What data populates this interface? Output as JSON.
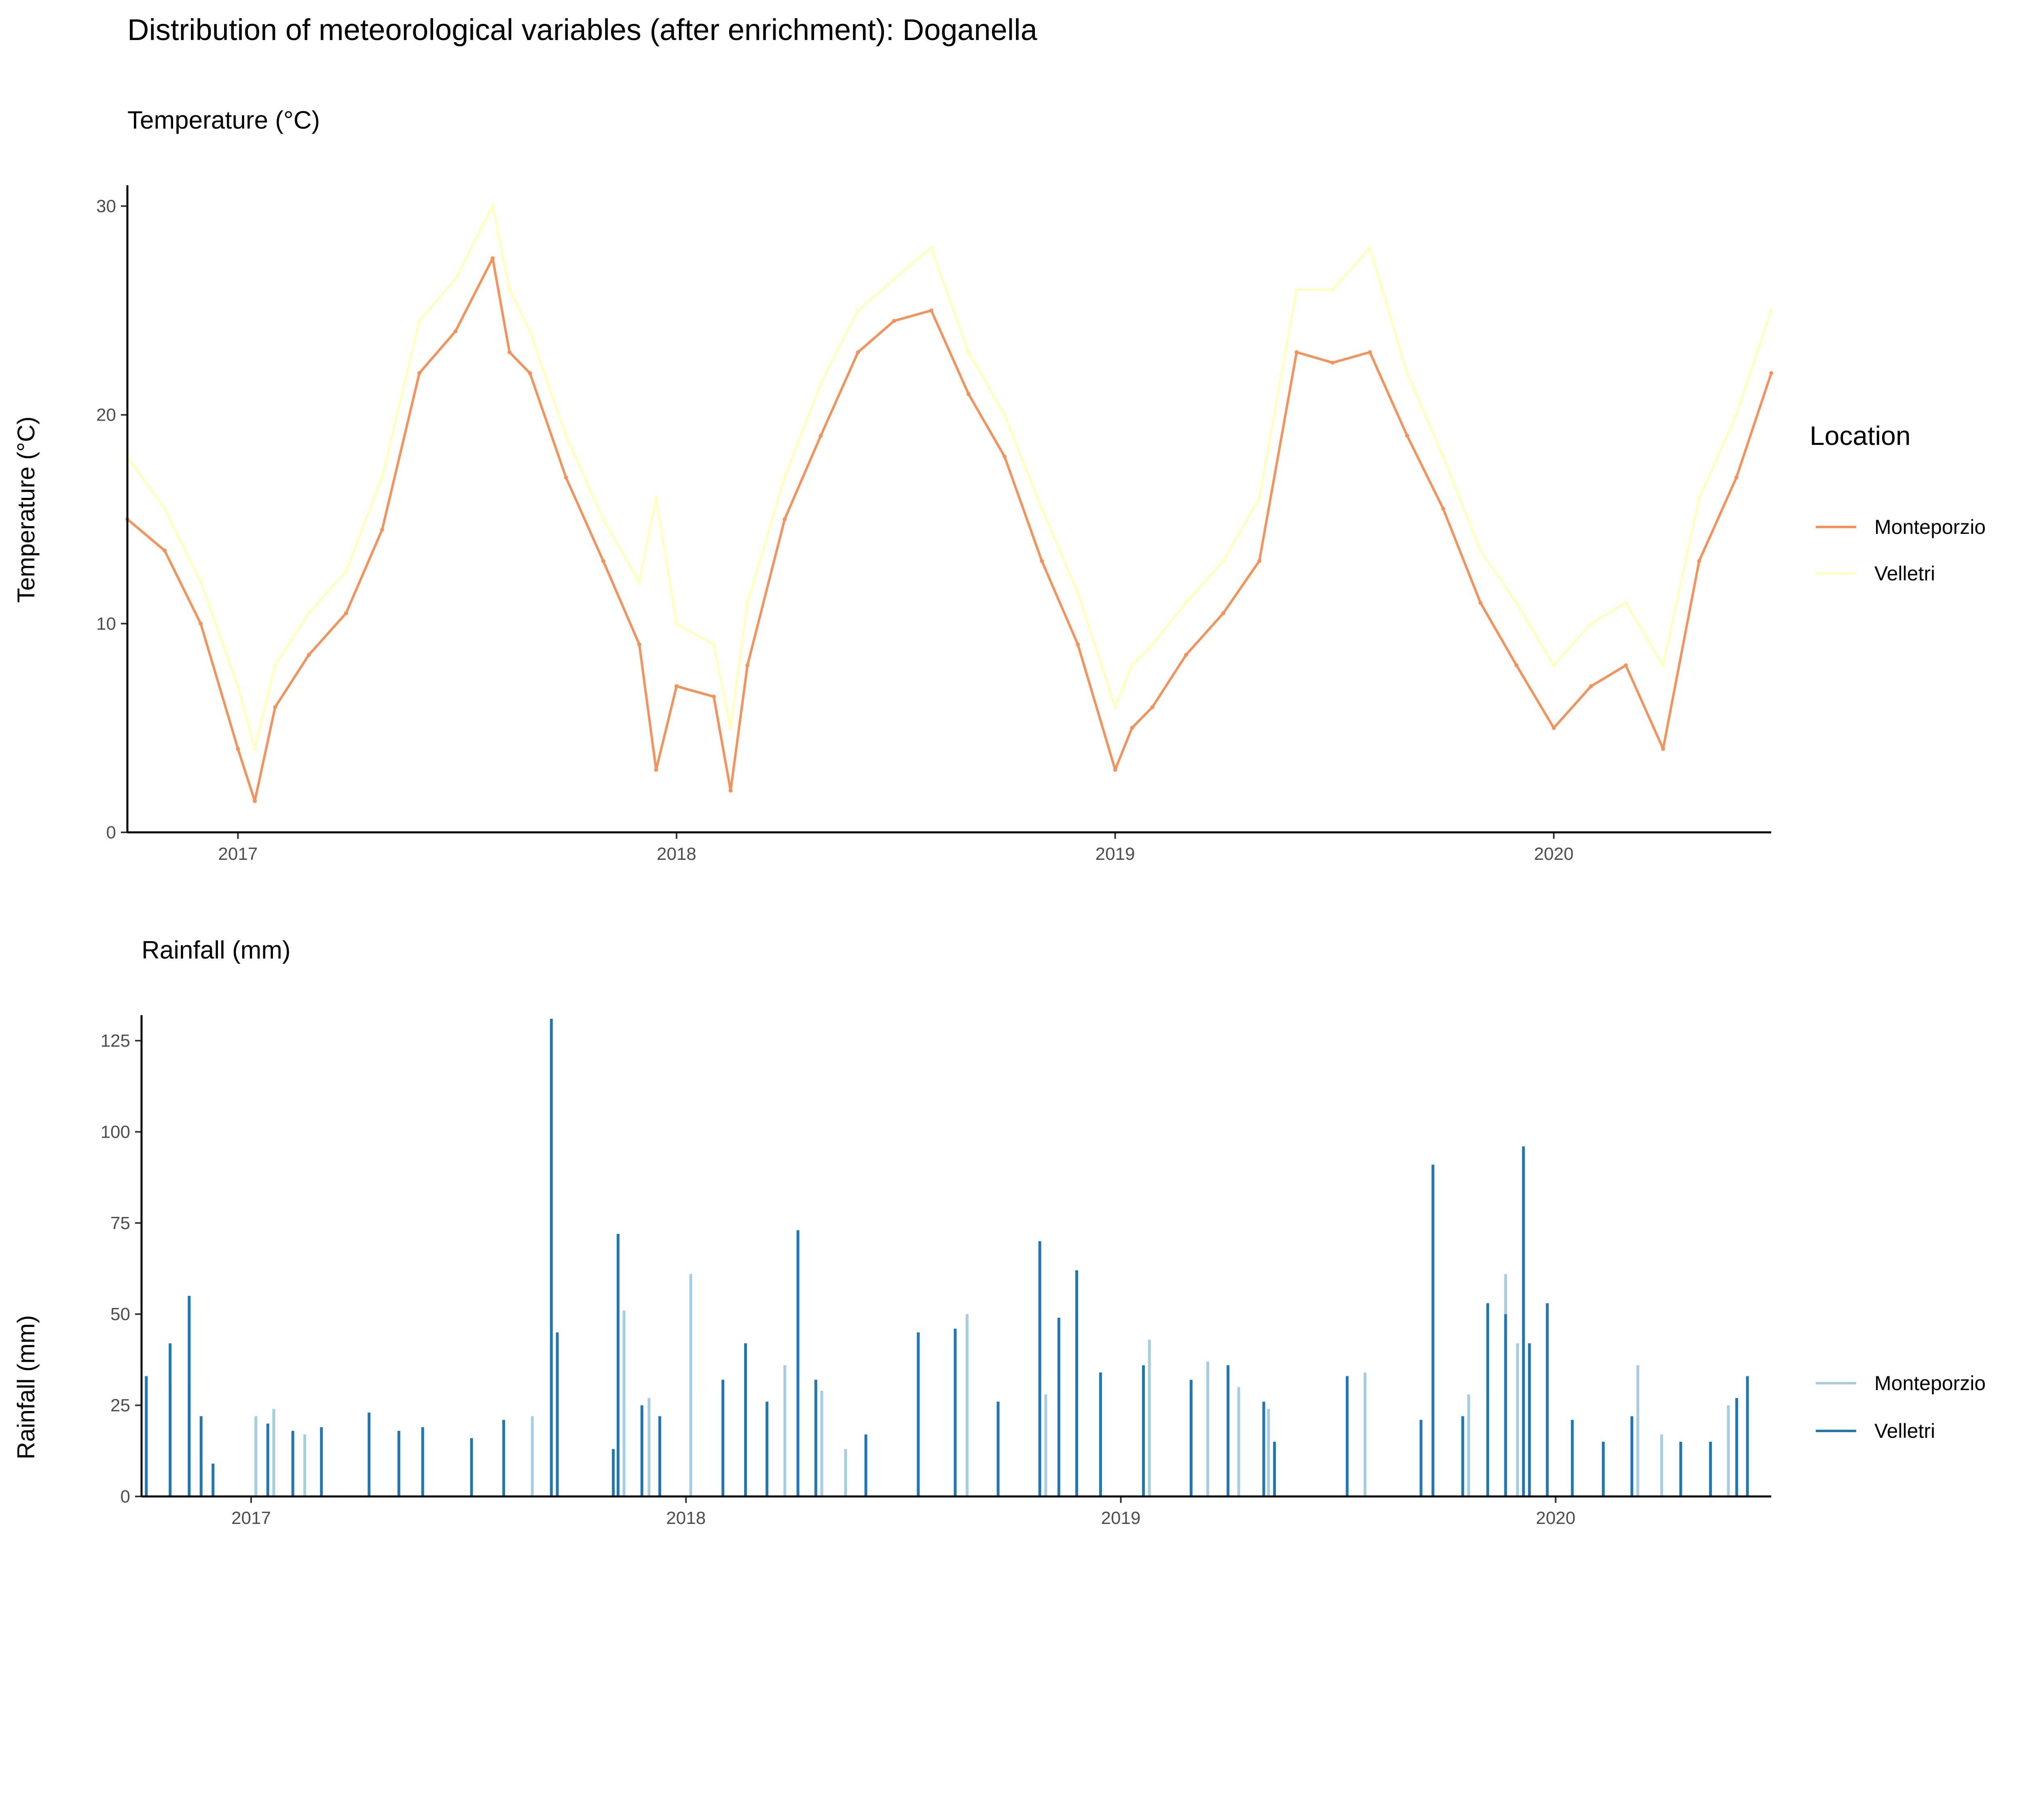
{
  "title": "Distribution of meteorological variables (after enrichment): Doganella",
  "legend_title": "Location",
  "chart_data": [
    {
      "type": "line",
      "subtitle": "Temperature (°C)",
      "ylabel": "Temperature (°C)",
      "xlabel": "",
      "x_ticks": [
        "2017",
        "2018",
        "2019",
        "2020"
      ],
      "y_ticks": [
        "0",
        "10",
        "20",
        "30"
      ],
      "xlim": [
        "2016-10-01",
        "2020-06-30"
      ],
      "ylim": [
        0,
        31
      ],
      "grid": false,
      "legend_position": "right",
      "series": [
        {
          "name": "Monteporzio",
          "color": "#f4925a",
          "x": [
            "2016-10-01",
            "2016-11-01",
            "2016-12-01",
            "2017-01-01",
            "2017-01-15",
            "2017-02-01",
            "2017-03-01",
            "2017-04-01",
            "2017-05-01",
            "2017-06-01",
            "2017-07-01",
            "2017-08-01",
            "2017-08-15",
            "2017-09-01",
            "2017-10-01",
            "2017-11-01",
            "2017-12-01",
            "2017-12-15",
            "2018-01-01",
            "2018-02-01",
            "2018-02-15",
            "2018-03-01",
            "2018-04-01",
            "2018-05-01",
            "2018-06-01",
            "2018-07-01",
            "2018-08-01",
            "2018-09-01",
            "2018-10-01",
            "2018-11-01",
            "2018-12-01",
            "2019-01-01",
            "2019-01-15",
            "2019-02-01",
            "2019-03-01",
            "2019-04-01",
            "2019-05-01",
            "2019-06-01",
            "2019-07-01",
            "2019-08-01",
            "2019-09-01",
            "2019-10-01",
            "2019-11-01",
            "2019-12-01",
            "2020-01-01",
            "2020-02-01",
            "2020-03-01",
            "2020-04-01",
            "2020-05-01",
            "2020-06-01",
            "2020-06-30"
          ],
          "y": [
            15,
            13.5,
            10,
            4,
            1.5,
            6,
            8.5,
            10.5,
            14.5,
            22,
            24,
            27.5,
            23,
            22,
            17,
            13,
            9,
            3,
            7,
            6.5,
            2,
            8,
            15,
            19,
            23,
            24.5,
            25,
            21,
            18,
            13,
            9,
            3,
            5,
            6,
            8.5,
            10.5,
            13,
            23,
            22.5,
            23,
            19,
            15.5,
            11,
            8,
            5,
            7,
            8,
            4,
            13,
            17,
            22
          ]
        },
        {
          "name": "Velletri",
          "color": "#ffffbf",
          "x": [
            "2016-10-01",
            "2016-11-01",
            "2016-12-01",
            "2017-01-01",
            "2017-01-15",
            "2017-02-01",
            "2017-03-01",
            "2017-04-01",
            "2017-05-01",
            "2017-06-01",
            "2017-07-01",
            "2017-08-01",
            "2017-08-15",
            "2017-09-01",
            "2017-10-01",
            "2017-11-01",
            "2017-12-01",
            "2017-12-15",
            "2018-01-01",
            "2018-02-01",
            "2018-02-15",
            "2018-03-01",
            "2018-04-01",
            "2018-05-01",
            "2018-06-01",
            "2018-07-01",
            "2018-08-01",
            "2018-09-01",
            "2018-10-01",
            "2018-11-01",
            "2018-12-01",
            "2019-01-01",
            "2019-01-15",
            "2019-02-01",
            "2019-03-01",
            "2019-04-01",
            "2019-05-01",
            "2019-06-01",
            "2019-07-01",
            "2019-08-01",
            "2019-09-01",
            "2019-10-01",
            "2019-11-01",
            "2019-12-01",
            "2020-01-01",
            "2020-02-01",
            "2020-03-01",
            "2020-04-01",
            "2020-05-01",
            "2020-06-01",
            "2020-06-30"
          ],
          "y": [
            18,
            15.5,
            12,
            7,
            4,
            8,
            10.5,
            12.5,
            17,
            24.5,
            26.5,
            30,
            26,
            24,
            19,
            15,
            12,
            16,
            10,
            9,
            5,
            11,
            17,
            21.5,
            25,
            26.5,
            28,
            23,
            20,
            15.5,
            11.5,
            6,
            8,
            9,
            11,
            13,
            16,
            26,
            26,
            28,
            22,
            18,
            13.5,
            11,
            8,
            10,
            11,
            8,
            16,
            20,
            25
          ]
        }
      ]
    },
    {
      "type": "line",
      "subtitle": "Rainfall (mm)",
      "ylabel": "Rainfall (mm)",
      "xlabel": "",
      "x_ticks": [
        "2017",
        "2018",
        "2019",
        "2020"
      ],
      "y_ticks": [
        "0",
        "25",
        "50",
        "75",
        "100",
        "125"
      ],
      "xlim": [
        "2016-10-01",
        "2020-06-30"
      ],
      "ylim": [
        0,
        132
      ],
      "grid": false,
      "legend_position": "right",
      "series": [
        {
          "name": "Monteporzio",
          "color": "#a6cee3",
          "x": [
            "2016-10-25",
            "2016-11-10",
            "2017-01-05",
            "2017-01-20",
            "2017-02-15",
            "2017-08-25",
            "2017-11-10",
            "2017-12-01",
            "2018-01-05",
            "2018-03-25",
            "2018-04-25",
            "2018-05-15",
            "2018-08-25",
            "2018-10-30",
            "2018-11-25",
            "2019-01-25",
            "2019-03-15",
            "2019-04-10",
            "2019-05-05",
            "2019-07-25",
            "2019-10-20",
            "2019-11-20",
            "2019-11-30",
            "2020-03-10",
            "2020-03-30",
            "2020-05-25"
          ],
          "y": [
            32,
            31,
            22,
            24,
            17,
            22,
            51,
            27,
            61,
            36,
            29,
            13,
            50,
            28,
            25,
            43,
            37,
            30,
            24,
            34,
            28,
            61,
            42,
            36,
            17,
            25
          ]
        },
        {
          "name": "Velletri",
          "color": "#1f78b4",
          "x": [
            "2016-10-05",
            "2016-10-25",
            "2016-11-10",
            "2016-11-20",
            "2016-11-30",
            "2017-01-15",
            "2017-02-05",
            "2017-03-01",
            "2017-04-10",
            "2017-05-05",
            "2017-05-25",
            "2017-07-05",
            "2017-08-01",
            "2017-09-10",
            "2017-09-15",
            "2017-11-01",
            "2017-11-05",
            "2017-11-25",
            "2017-12-10",
            "2018-02-01",
            "2018-02-20",
            "2018-03-10",
            "2018-04-05",
            "2018-04-20",
            "2018-06-01",
            "2018-07-15",
            "2018-08-15",
            "2018-09-20",
            "2018-10-25",
            "2018-11-10",
            "2018-11-25",
            "2018-12-15",
            "2019-01-20",
            "2019-03-01",
            "2019-04-01",
            "2019-05-01",
            "2019-05-10",
            "2019-07-10",
            "2019-09-10",
            "2019-09-20",
            "2019-10-15",
            "2019-11-05",
            "2019-11-20",
            "2019-12-05",
            "2019-12-10",
            "2019-12-25",
            "2020-01-15",
            "2020-02-10",
            "2020-03-05",
            "2020-04-15",
            "2020-05-10",
            "2020-06-01",
            "2020-06-10"
          ],
          "y": [
            33,
            42,
            55,
            22,
            9,
            20,
            18,
            19,
            23,
            18,
            19,
            16,
            21,
            131,
            45,
            13,
            72,
            25,
            22,
            32,
            42,
            26,
            73,
            32,
            17,
            45,
            46,
            26,
            70,
            49,
            62,
            34,
            36,
            32,
            36,
            26,
            15,
            33,
            21,
            91,
            22,
            53,
            50,
            96,
            42,
            53,
            21,
            15,
            22,
            15,
            15,
            27,
            33
          ]
        }
      ]
    }
  ]
}
